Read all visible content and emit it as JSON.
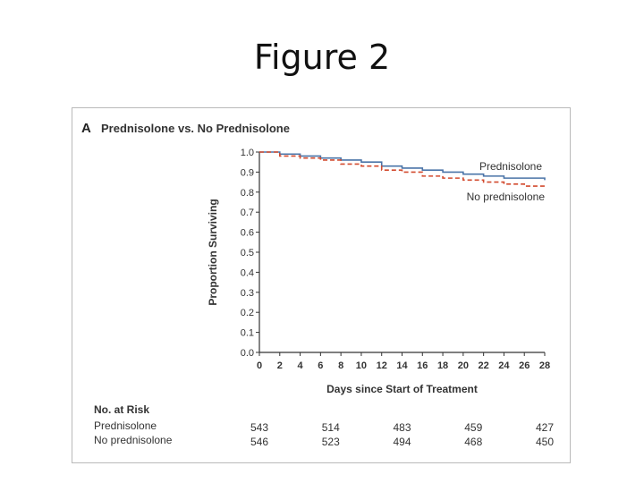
{
  "slide": {
    "title": "Figure 2"
  },
  "panel": {
    "letter": "A",
    "title": "Prednisolone vs. No Prednisolone"
  },
  "chart_data": {
    "type": "line",
    "xlabel": "Days since Start of Treatment",
    "ylabel": "Proportion Surviving",
    "xlim": [
      0,
      28
    ],
    "ylim": [
      0,
      1.0
    ],
    "x_ticks": [
      0,
      2,
      4,
      6,
      8,
      10,
      12,
      14,
      16,
      18,
      20,
      22,
      24,
      26,
      28
    ],
    "y_ticks": [
      "0.0",
      "0.1",
      "0.2",
      "0.3",
      "0.4",
      "0.5",
      "0.6",
      "0.7",
      "0.8",
      "0.9",
      "1.0"
    ],
    "grid": false,
    "series": [
      {
        "name": "Prednisolone",
        "color": "#4a74a8",
        "style": "solid",
        "x": [
          0,
          2,
          4,
          6,
          8,
          10,
          12,
          14,
          16,
          18,
          20,
          22,
          24,
          26,
          28
        ],
        "y": [
          1.0,
          0.99,
          0.98,
          0.97,
          0.96,
          0.95,
          0.93,
          0.92,
          0.91,
          0.9,
          0.89,
          0.88,
          0.87,
          0.87,
          0.86
        ]
      },
      {
        "name": "No prednisolone",
        "color": "#d24a2e",
        "style": "dashed",
        "x": [
          0,
          2,
          4,
          6,
          8,
          10,
          12,
          14,
          16,
          18,
          20,
          22,
          24,
          26,
          28
        ],
        "y": [
          1.0,
          0.98,
          0.97,
          0.96,
          0.94,
          0.93,
          0.91,
          0.9,
          0.88,
          0.87,
          0.86,
          0.85,
          0.84,
          0.83,
          0.82
        ]
      }
    ],
    "number_at_risk": {
      "header": "No. at Risk",
      "days": [
        0,
        7,
        14,
        21,
        28
      ],
      "rows": [
        {
          "label": "Prednisolone",
          "values": [
            "543",
            "514",
            "483",
            "459",
            "427"
          ]
        },
        {
          "label": "No prednisolone",
          "values": [
            "546",
            "523",
            "494",
            "468",
            "450"
          ]
        }
      ]
    }
  }
}
